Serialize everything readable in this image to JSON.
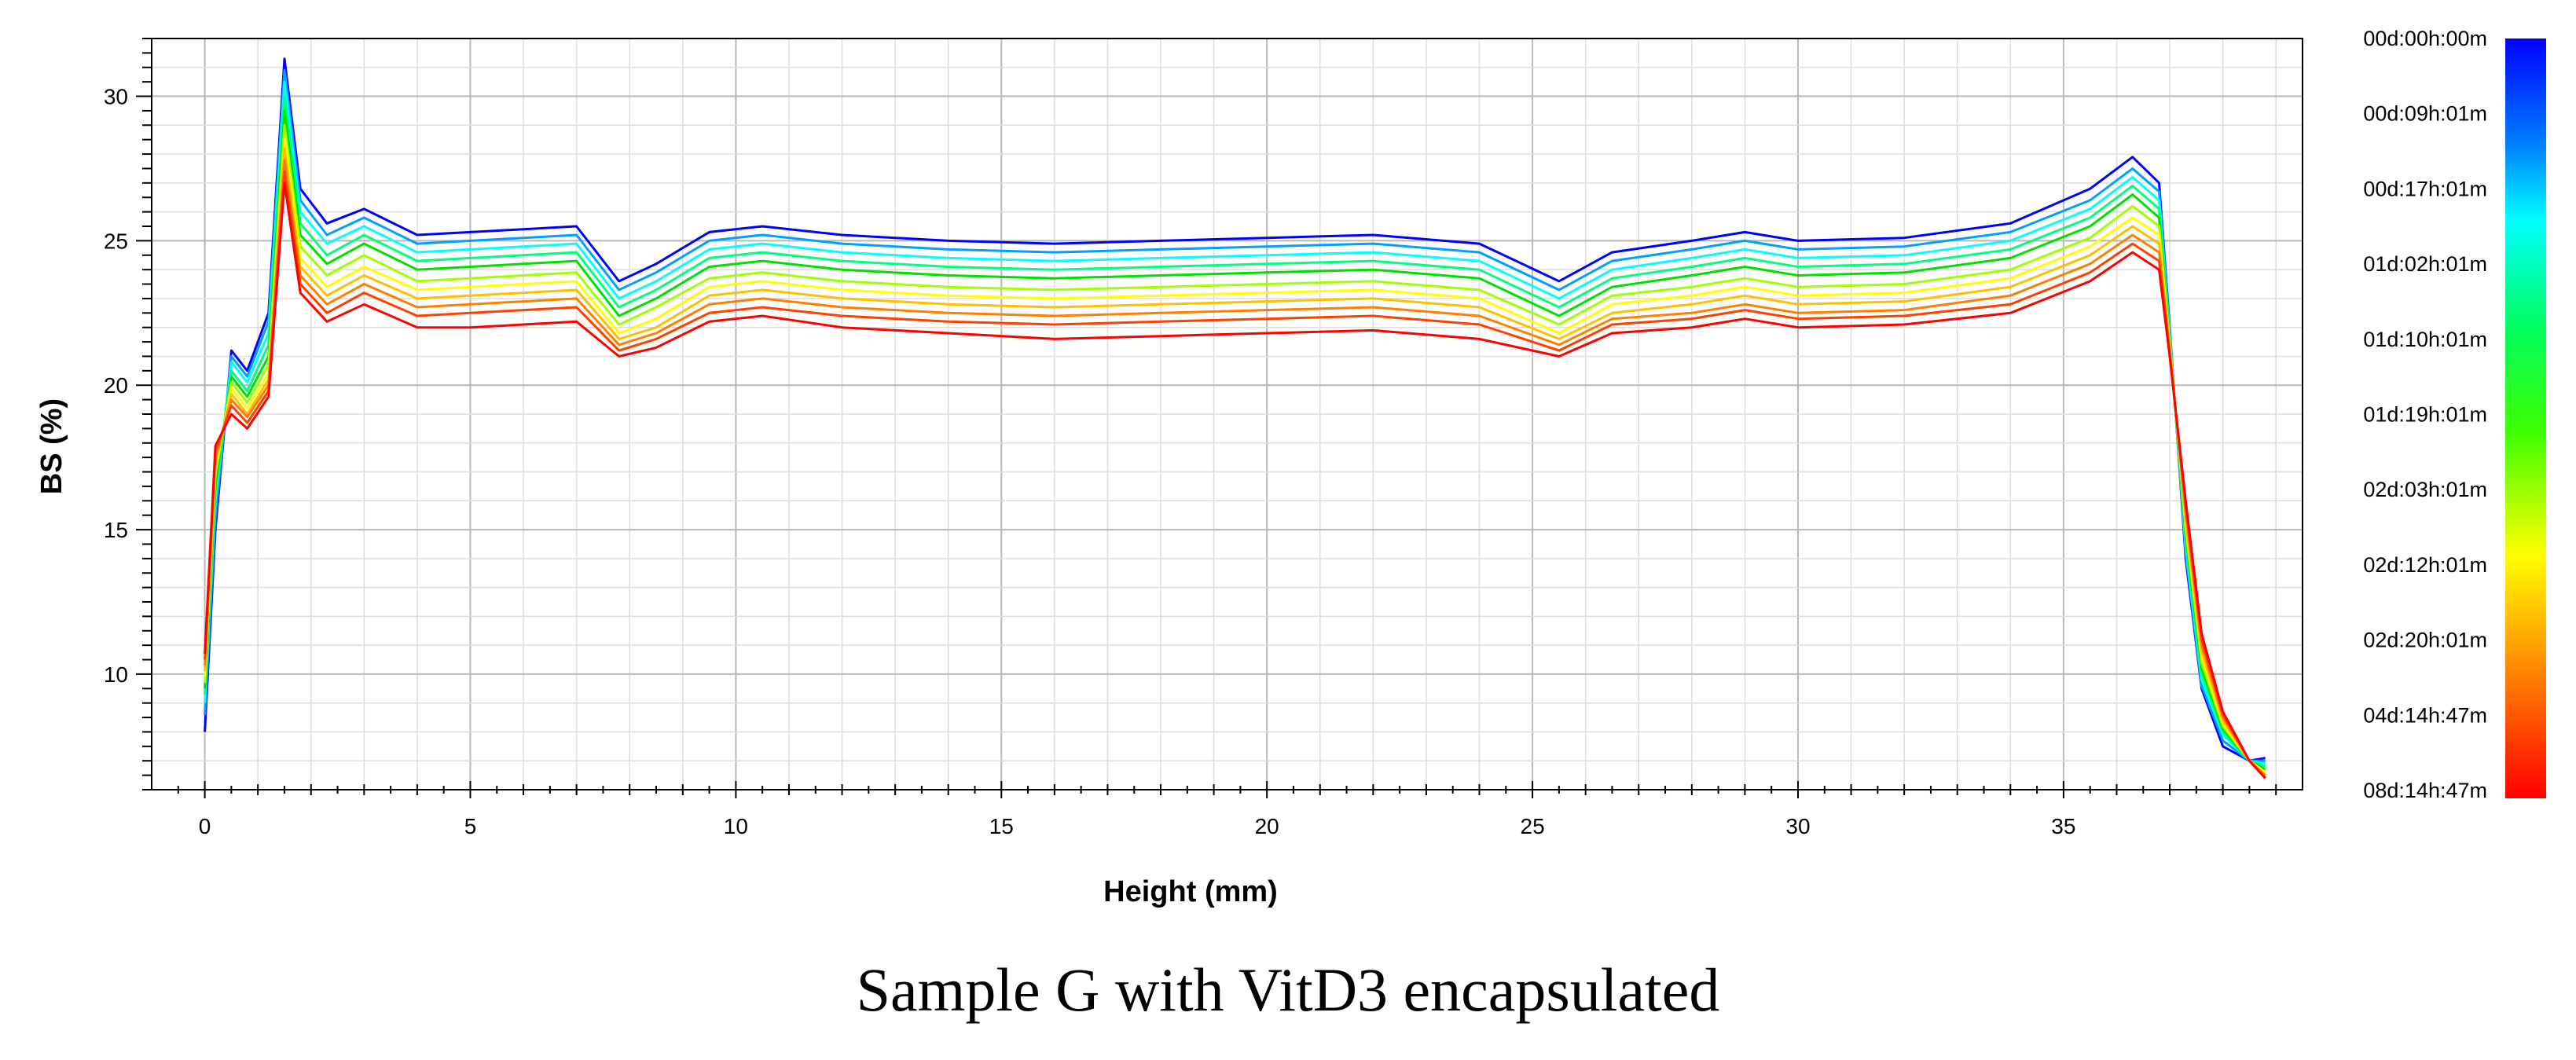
{
  "chart_data": {
    "type": "line",
    "title": "",
    "caption": "Sample G with VitD3 encapsulated",
    "xlabel": "Height (mm)",
    "ylabel": "BS (%)",
    "xlim": [
      -1,
      39.5
    ],
    "ylim": [
      6,
      32
    ],
    "x_ticks": [
      "0",
      "5",
      "10",
      "15",
      "20",
      "25",
      "30",
      "35"
    ],
    "y_ticks": [
      "10",
      "15",
      "20",
      "25",
      "30"
    ],
    "grid": true,
    "legend_position": "right",
    "legend_labels": [
      "00d:00h:00m",
      "00d:09h:01m",
      "00d:17h:01m",
      "01d:02h:01m",
      "01d:10h:01m",
      "01d:19h:01m",
      "02d:03h:01m",
      "02d:12h:01m",
      "02d:20h:01m",
      "04d:14h:47m",
      "08d:14h:47m"
    ],
    "colors": {
      "scale": [
        "#0000ff",
        "#00a0ff",
        "#00ffff",
        "#00ff80",
        "#00e000",
        "#a0ff00",
        "#ffff00",
        "#ffc000",
        "#ff8000",
        "#ff4000",
        "#ff0000"
      ]
    },
    "series": [
      {
        "name": "00d:00h:00m",
        "x": [
          0,
          0.2,
          0.5,
          0.8,
          1.2,
          1.5,
          1.8,
          2.3,
          3,
          4,
          5,
          6,
          7,
          7.8,
          8.5,
          9.5,
          10.5,
          12,
          14,
          16,
          18,
          20,
          22,
          24,
          25.5,
          26.5,
          28,
          29,
          30,
          32,
          34,
          35.5,
          36.3,
          36.8,
          37.0,
          37.3,
          37.6,
          38.0,
          38.5,
          38.8
        ],
        "values": [
          8.0,
          15.0,
          21.2,
          20.5,
          22.5,
          31.3,
          26.8,
          25.6,
          26.1,
          25.2,
          25.3,
          25.4,
          25.5,
          23.6,
          24.2,
          25.3,
          25.5,
          25.2,
          25.0,
          24.9,
          25.0,
          25.1,
          25.2,
          24.9,
          23.6,
          24.6,
          25.0,
          25.3,
          25.0,
          25.1,
          25.6,
          26.8,
          27.9,
          27.0,
          22.0,
          14.0,
          9.5,
          7.5,
          7.0,
          7.1
        ]
      },
      {
        "name": "00d:09h:01m",
        "x": [
          0,
          0.2,
          0.5,
          0.8,
          1.2,
          1.5,
          1.8,
          2.3,
          3,
          4,
          5,
          6,
          7,
          7.8,
          8.5,
          9.5,
          10.5,
          12,
          14,
          16,
          18,
          20,
          22,
          24,
          25.5,
          26.5,
          28,
          29,
          30,
          32,
          34,
          35.5,
          36.3,
          36.8,
          37.0,
          37.3,
          37.6,
          38.0,
          38.5,
          38.8
        ],
        "values": [
          8.6,
          15.5,
          21.0,
          20.3,
          22.2,
          30.9,
          26.4,
          25.2,
          25.8,
          24.9,
          25.0,
          25.1,
          25.2,
          23.3,
          23.9,
          25.0,
          25.2,
          24.9,
          24.7,
          24.6,
          24.7,
          24.8,
          24.9,
          24.6,
          23.3,
          24.3,
          24.7,
          25.0,
          24.7,
          24.8,
          25.3,
          26.4,
          27.5,
          26.7,
          21.9,
          14.2,
          9.6,
          7.7,
          7.0,
          7.0
        ]
      },
      {
        "name": "00d:17h:01m",
        "x": [
          0,
          0.2,
          0.5,
          0.8,
          1.2,
          1.5,
          1.8,
          2.3,
          3,
          4,
          5,
          6,
          7,
          7.8,
          8.5,
          9.5,
          10.5,
          12,
          14,
          16,
          18,
          20,
          22,
          24,
          25.5,
          26.5,
          28,
          29,
          30,
          32,
          34,
          35.5,
          36.3,
          36.8,
          37.0,
          37.3,
          37.6,
          38.0,
          38.5,
          38.8
        ],
        "values": [
          9.0,
          16.0,
          20.8,
          20.1,
          21.8,
          30.5,
          26.0,
          24.9,
          25.5,
          24.6,
          24.7,
          24.8,
          24.9,
          23.0,
          23.6,
          24.7,
          24.9,
          24.6,
          24.4,
          24.3,
          24.4,
          24.5,
          24.6,
          24.3,
          23.0,
          24.0,
          24.4,
          24.7,
          24.4,
          24.5,
          25.0,
          26.1,
          27.2,
          26.4,
          21.8,
          14.4,
          9.8,
          7.9,
          7.0,
          6.9
        ]
      },
      {
        "name": "01d:02h:01m",
        "x": [
          0,
          0.2,
          0.5,
          0.8,
          1.2,
          1.5,
          1.8,
          2.3,
          3,
          4,
          5,
          6,
          7,
          7.8,
          8.5,
          9.5,
          10.5,
          12,
          14,
          16,
          18,
          20,
          22,
          24,
          25.5,
          26.5,
          28,
          29,
          30,
          32,
          34,
          35.5,
          36.3,
          36.8,
          37.0,
          37.3,
          37.6,
          38.0,
          38.5,
          38.8
        ],
        "values": [
          9.3,
          16.3,
          20.5,
          19.8,
          21.4,
          30.0,
          25.6,
          24.5,
          25.2,
          24.3,
          24.4,
          24.5,
          24.6,
          22.7,
          23.3,
          24.4,
          24.6,
          24.3,
          24.1,
          24.0,
          24.1,
          24.2,
          24.3,
          24.0,
          22.7,
          23.7,
          24.1,
          24.4,
          24.1,
          24.2,
          24.7,
          25.8,
          26.9,
          26.1,
          21.7,
          14.6,
          10.0,
          8.0,
          7.0,
          6.8
        ]
      },
      {
        "name": "01d:10h:01m",
        "x": [
          0,
          0.2,
          0.5,
          0.8,
          1.2,
          1.5,
          1.8,
          2.3,
          3,
          4,
          5,
          6,
          7,
          7.8,
          8.5,
          9.5,
          10.5,
          12,
          14,
          16,
          18,
          20,
          22,
          24,
          25.5,
          26.5,
          28,
          29,
          30,
          32,
          34,
          35.5,
          36.3,
          36.8,
          37.0,
          37.3,
          37.6,
          38.0,
          38.5,
          38.8
        ],
        "values": [
          9.5,
          16.6,
          20.3,
          19.6,
          21.0,
          29.5,
          25.2,
          24.2,
          24.9,
          24.0,
          24.1,
          24.2,
          24.3,
          22.4,
          23.0,
          24.1,
          24.3,
          24.0,
          23.8,
          23.7,
          23.8,
          23.9,
          24.0,
          23.7,
          22.4,
          23.4,
          23.8,
          24.1,
          23.8,
          23.9,
          24.4,
          25.5,
          26.6,
          25.8,
          21.6,
          14.8,
          10.2,
          8.1,
          7.0,
          6.7
        ]
      },
      {
        "name": "01d:19h:01m",
        "x": [
          0,
          0.2,
          0.5,
          0.8,
          1.2,
          1.5,
          1.8,
          2.3,
          3,
          4,
          5,
          6,
          7,
          7.8,
          8.5,
          9.5,
          10.5,
          12,
          14,
          16,
          18,
          20,
          22,
          24,
          25.5,
          26.5,
          28,
          29,
          30,
          32,
          34,
          35.5,
          36.3,
          36.8,
          37.0,
          37.3,
          37.6,
          38.0,
          38.5,
          38.8
        ],
        "values": [
          9.7,
          16.9,
          20.1,
          19.4,
          20.7,
          29.0,
          24.8,
          23.8,
          24.5,
          23.6,
          23.7,
          23.8,
          23.9,
          22.1,
          22.7,
          23.7,
          23.9,
          23.6,
          23.4,
          23.3,
          23.4,
          23.5,
          23.6,
          23.3,
          22.1,
          23.1,
          23.4,
          23.7,
          23.4,
          23.5,
          24.0,
          25.1,
          26.2,
          25.5,
          21.5,
          15.0,
          10.4,
          8.2,
          7.0,
          6.6
        ]
      },
      {
        "name": "02d:03h:01m",
        "x": [
          0,
          0.2,
          0.5,
          0.8,
          1.2,
          1.5,
          1.8,
          2.3,
          3,
          4,
          5,
          6,
          7,
          7.8,
          8.5,
          9.5,
          10.5,
          12,
          14,
          16,
          18,
          20,
          22,
          24,
          25.5,
          26.5,
          28,
          29,
          30,
          32,
          34,
          35.5,
          36.3,
          36.8,
          37.0,
          37.3,
          37.6,
          38.0,
          38.5,
          38.8
        ],
        "values": [
          9.9,
          17.1,
          19.9,
          19.2,
          20.4,
          28.6,
          24.4,
          23.4,
          24.1,
          23.3,
          23.4,
          23.5,
          23.6,
          21.8,
          22.3,
          23.4,
          23.6,
          23.3,
          23.1,
          23.0,
          23.1,
          23.2,
          23.3,
          23.0,
          21.8,
          22.8,
          23.1,
          23.4,
          23.1,
          23.2,
          23.7,
          24.8,
          25.8,
          25.2,
          21.4,
          15.2,
          10.6,
          8.3,
          7.0,
          6.6
        ]
      },
      {
        "name": "02d:12h:01m",
        "x": [
          0,
          0.2,
          0.5,
          0.8,
          1.2,
          1.5,
          1.8,
          2.3,
          3,
          4,
          5,
          6,
          7,
          7.8,
          8.5,
          9.5,
          10.5,
          12,
          14,
          16,
          18,
          20,
          22,
          24,
          25.5,
          26.5,
          28,
          29,
          30,
          32,
          34,
          35.5,
          36.3,
          36.8,
          37.0,
          37.3,
          37.6,
          38.0,
          38.5,
          38.8
        ],
        "values": [
          10.1,
          17.3,
          19.7,
          19.0,
          20.2,
          28.2,
          24.1,
          23.1,
          23.8,
          23.0,
          23.1,
          23.2,
          23.3,
          21.6,
          22.0,
          23.1,
          23.3,
          23.0,
          22.8,
          22.7,
          22.8,
          22.9,
          23.0,
          22.7,
          21.6,
          22.5,
          22.8,
          23.1,
          22.8,
          22.9,
          23.4,
          24.5,
          25.5,
          24.9,
          21.3,
          15.4,
          10.8,
          8.4,
          7.0,
          6.5
        ]
      },
      {
        "name": "02d:20h:01m",
        "x": [
          0,
          0.2,
          0.5,
          0.8,
          1.2,
          1.5,
          1.8,
          2.3,
          3,
          4,
          5,
          6,
          7,
          7.8,
          8.5,
          9.5,
          10.5,
          12,
          14,
          16,
          18,
          20,
          22,
          24,
          25.5,
          26.5,
          28,
          29,
          30,
          32,
          34,
          35.5,
          36.3,
          36.8,
          37.0,
          37.3,
          37.6,
          38.0,
          38.5,
          38.8
        ],
        "values": [
          10.3,
          17.5,
          19.5,
          18.9,
          20.0,
          27.8,
          23.8,
          22.8,
          23.5,
          22.7,
          22.8,
          22.9,
          23.0,
          21.4,
          21.8,
          22.8,
          23.0,
          22.7,
          22.5,
          22.4,
          22.5,
          22.6,
          22.7,
          22.4,
          21.4,
          22.3,
          22.5,
          22.8,
          22.5,
          22.6,
          23.1,
          24.2,
          25.2,
          24.6,
          21.2,
          15.6,
          11.0,
          8.5,
          7.0,
          6.5
        ]
      },
      {
        "name": "04d:14h:47m",
        "x": [
          0,
          0.2,
          0.5,
          0.8,
          1.2,
          1.5,
          1.8,
          2.3,
          3,
          4,
          5,
          6,
          7,
          7.8,
          8.5,
          9.5,
          10.5,
          12,
          14,
          16,
          18,
          20,
          22,
          24,
          25.5,
          26.5,
          28,
          29,
          30,
          32,
          34,
          35.5,
          36.3,
          36.8,
          37.0,
          37.3,
          37.6,
          38.0,
          38.5,
          38.8
        ],
        "values": [
          10.5,
          17.7,
          19.3,
          18.7,
          19.8,
          27.4,
          23.5,
          22.5,
          23.2,
          22.4,
          22.5,
          22.6,
          22.7,
          21.2,
          21.6,
          22.5,
          22.7,
          22.4,
          22.2,
          22.1,
          22.2,
          22.3,
          22.4,
          22.1,
          21.2,
          22.1,
          22.3,
          22.6,
          22.3,
          22.4,
          22.8,
          23.9,
          24.9,
          24.3,
          21.1,
          15.8,
          11.2,
          8.6,
          7.0,
          6.4
        ]
      },
      {
        "name": "08d:14h:47m",
        "x": [
          0,
          0.2,
          0.5,
          0.8,
          1.2,
          1.5,
          1.8,
          2.3,
          3,
          4,
          5,
          6,
          7,
          7.8,
          8.5,
          9.5,
          10.5,
          12,
          14,
          16,
          18,
          20,
          22,
          24,
          25.5,
          26.5,
          28,
          29,
          30,
          32,
          34,
          35.5,
          36.3,
          36.8,
          37.0,
          37.3,
          37.6,
          38.0,
          38.5,
          38.8
        ],
        "values": [
          10.7,
          17.9,
          19.0,
          18.5,
          19.6,
          27.0,
          23.2,
          22.2,
          22.8,
          22.0,
          22.0,
          22.1,
          22.2,
          21.0,
          21.3,
          22.2,
          22.4,
          22.0,
          21.8,
          21.6,
          21.7,
          21.8,
          21.9,
          21.6,
          21.0,
          21.8,
          22.0,
          22.3,
          22.0,
          22.1,
          22.5,
          23.6,
          24.6,
          24.0,
          21.0,
          16.0,
          11.4,
          8.7,
          7.0,
          6.4
        ]
      }
    ]
  }
}
